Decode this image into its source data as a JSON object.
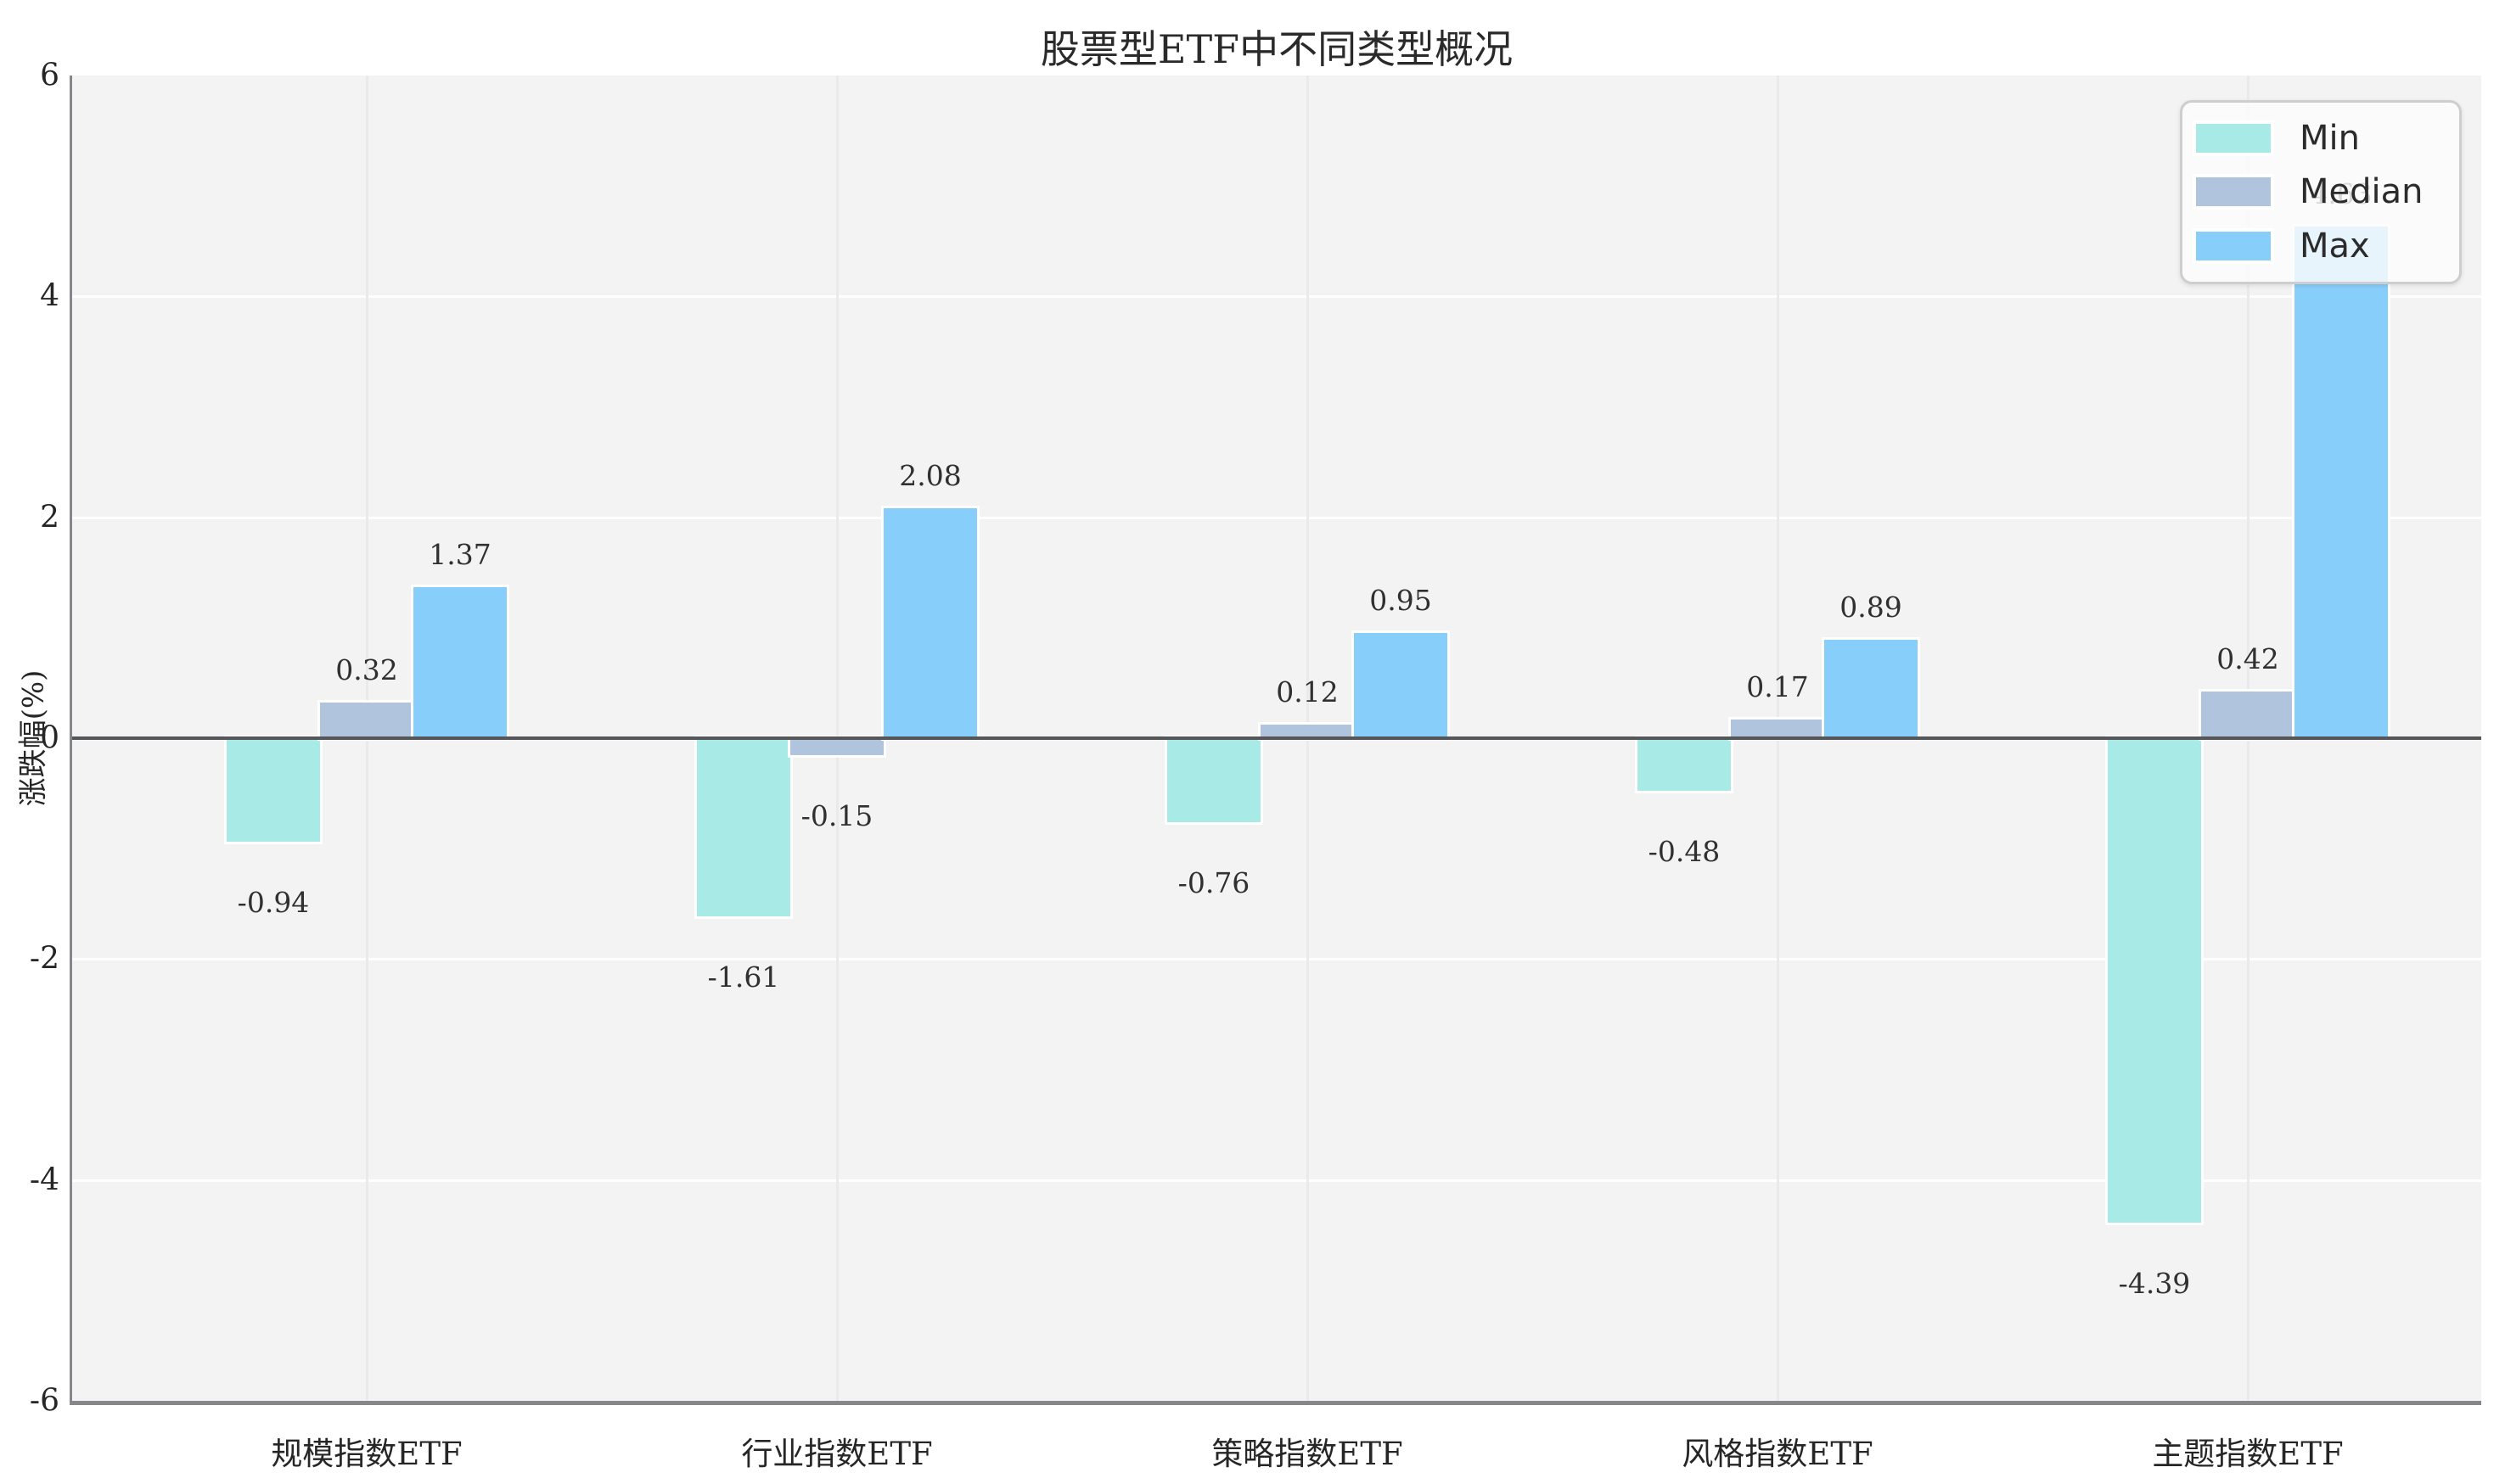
{
  "title": "股票型ETF中不同类型概况",
  "y_axis": {
    "label": "涨跌幅(%)",
    "ticks": [
      -6,
      -4,
      -2,
      0,
      2,
      4,
      6
    ]
  },
  "legend": {
    "entries": [
      {
        "label": "Min",
        "color": "#a8eae6"
      },
      {
        "label": "Median",
        "color": "#b0c4de"
      },
      {
        "label": "Max",
        "color": "#87cefa"
      }
    ],
    "position": "upper right"
  },
  "chart_data": {
    "type": "bar",
    "title": "股票型ETF中不同类型概况",
    "categories": [
      "规模指数ETF",
      "行业指数ETF",
      "策略指数ETF",
      "风格指数ETF",
      "主题指数ETF"
    ],
    "series": [
      {
        "name": "Min",
        "color": "#a8eae6",
        "values": [
          -0.94,
          -1.61,
          -0.76,
          -0.48,
          -4.39
        ]
      },
      {
        "name": "Median",
        "color": "#b0c4de",
        "values": [
          0.32,
          -0.15,
          0.12,
          0.17,
          0.42
        ]
      },
      {
        "name": "Max",
        "color": "#87cefa",
        "values": [
          1.37,
          2.08,
          0.95,
          0.89,
          4.63
        ]
      }
    ],
    "xlabel": "",
    "ylabel": "涨跌幅(%)",
    "ylim": [
      -6,
      6
    ],
    "grid": true,
    "legend_position": "upper right",
    "value_labels_decimals": 2,
    "colors": {
      "plot_background": "#f3f3f4",
      "figure_background": "#ffffff",
      "grid_horizontal": "#ffffff",
      "grid_vertical": "#eaeaec",
      "zero_line": "#55565a",
      "spine": "#86878b",
      "text": "#262626"
    }
  }
}
